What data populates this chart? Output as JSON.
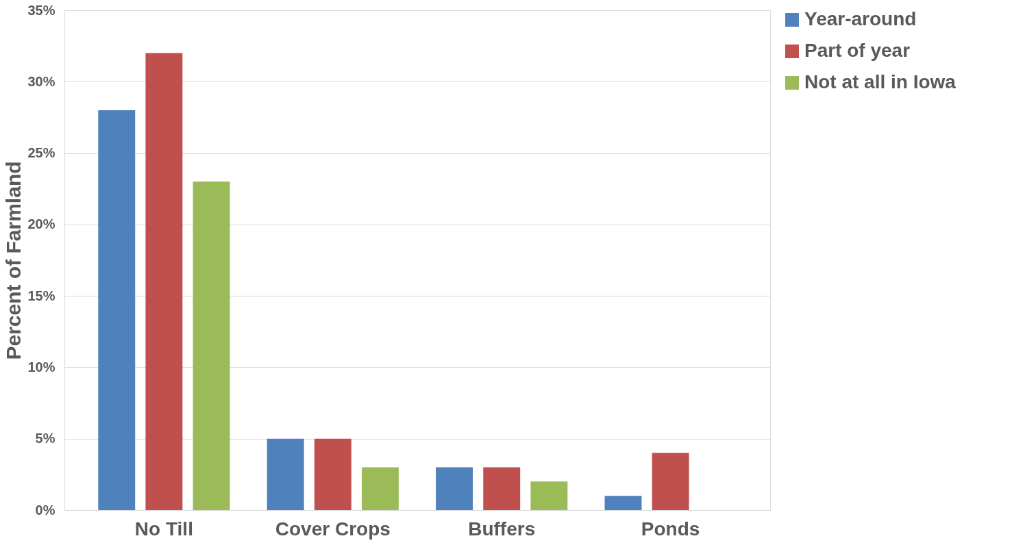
{
  "chart_data": {
    "type": "bar",
    "ylabel": "Percent of Farmland",
    "categories": [
      "No Till",
      "Cover Crops",
      "Buffers",
      "Ponds"
    ],
    "series": [
      {
        "name": "Year-around",
        "color": "#4f81bd",
        "values": [
          28,
          5,
          3,
          1
        ]
      },
      {
        "name": "Part of year",
        "color": "#c0504d",
        "values": [
          32,
          5,
          3,
          4
        ]
      },
      {
        "name": "Not at all in Iowa",
        "color": "#9bbb59",
        "values": [
          23,
          3,
          2,
          null
        ]
      }
    ],
    "ylim": [
      0,
      35
    ],
    "yticks": [
      {
        "value": 0,
        "label": "0%"
      },
      {
        "value": 5,
        "label": "5%"
      },
      {
        "value": 10,
        "label": "10%"
      },
      {
        "value": 15,
        "label": "15%"
      },
      {
        "value": 20,
        "label": "20%"
      },
      {
        "value": 25,
        "label": "25%"
      },
      {
        "value": 30,
        "label": "30%"
      },
      {
        "value": 35,
        "label": "35%"
      }
    ],
    "grid": "y",
    "legend": "right"
  }
}
